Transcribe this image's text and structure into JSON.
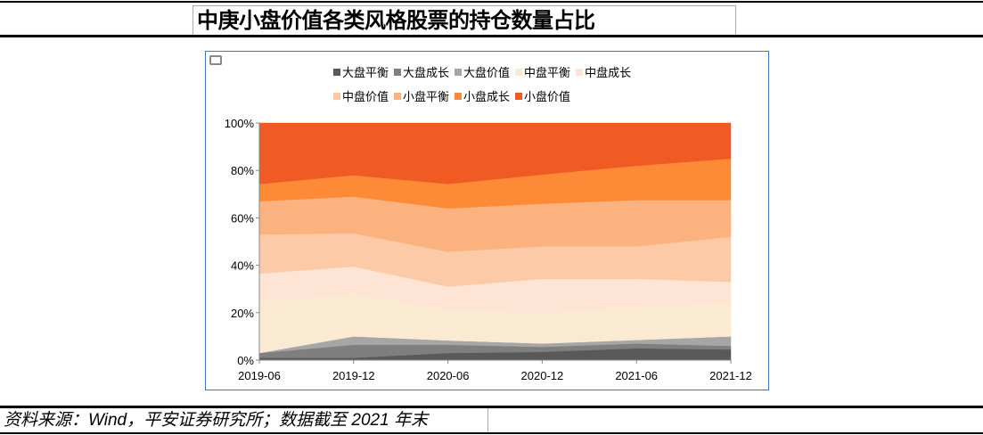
{
  "header": {
    "title": "中庚小盘价值各类风格股票的持仓数量占比"
  },
  "footer": {
    "source": "资料来源：Wind，平安证券研究所；数据截至 2021 年末"
  },
  "chart_data": {
    "type": "area",
    "stacked": true,
    "percent": true,
    "categories": [
      "2019-06",
      "2019-12",
      "2020-06",
      "2020-12",
      "2021-06",
      "2021-12"
    ],
    "ylim": [
      0,
      100
    ],
    "yticks": [
      "0%",
      "20%",
      "40%",
      "60%",
      "80%",
      "100%"
    ],
    "legend_position": "top",
    "series": [
      {
        "name": "大盘平衡",
        "color": "#595959",
        "values": [
          1,
          1,
          3,
          3.5,
          5,
          4.5
        ]
      },
      {
        "name": "大盘成长",
        "color": "#7f7f7f",
        "values": [
          2,
          5.5,
          3.5,
          2.1,
          2,
          1.5
        ]
      },
      {
        "name": "大盘价值",
        "color": "#a6a6a6",
        "values": [
          0,
          3.5,
          1.8,
          1.4,
          1.5,
          4
        ]
      },
      {
        "name": "中盘平衡",
        "color": "#fbead2",
        "values": [
          21.5,
          18,
          13.2,
          13,
          14,
          14.5
        ]
      },
      {
        "name": "中盘成长",
        "color": "#fde4d4",
        "values": [
          12,
          11.5,
          9.5,
          14.3,
          11.8,
          8.5
        ]
      },
      {
        "name": "中盘价值",
        "color": "#fdcaa8",
        "values": [
          16.5,
          14,
          14.7,
          13.7,
          13.7,
          19
        ]
      },
      {
        "name": "小盘平衡",
        "color": "#fcb27f",
        "values": [
          14,
          15.5,
          18.3,
          18,
          19.5,
          15.5
        ]
      },
      {
        "name": "小盘成长",
        "color": "#fc8a36",
        "values": [
          7.3,
          9,
          10.3,
          12.3,
          14.5,
          17.5
        ]
      },
      {
        "name": "小盘价值",
        "color": "#f05a23",
        "values": [
          25.7,
          22,
          25.7,
          21.7,
          18,
          15
        ]
      }
    ]
  }
}
